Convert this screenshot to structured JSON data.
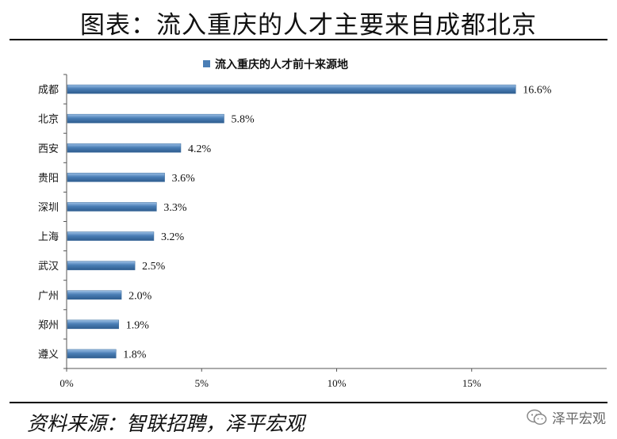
{
  "page": {
    "title": "图表：流入重庆的人才主要来自成都北京",
    "source": "资料来源：智联招聘，泽平宏观",
    "watermark": "泽平宏观",
    "watermark_icon": "wechat-icon"
  },
  "chart_data": {
    "type": "bar",
    "orientation": "horizontal",
    "title": "",
    "series": [
      {
        "name": "流入重庆的人才前十来源地",
        "color": "#4a7eb5",
        "values": [
          16.6,
          5.8,
          4.2,
          3.6,
          3.3,
          3.2,
          2.5,
          2.0,
          1.9,
          1.8
        ],
        "labels": [
          "16.6%",
          "5.8%",
          "4.2%",
          "3.6%",
          "3.3%",
          "3.2%",
          "2.5%",
          "2.0%",
          "1.9%",
          "1.8%"
        ]
      }
    ],
    "categories": [
      "成都",
      "北京",
      "西安",
      "贵阳",
      "深圳",
      "上海",
      "武汉",
      "广州",
      "郑州",
      "遵义"
    ],
    "xlim": [
      0,
      20
    ],
    "xticks": [
      0,
      5,
      10,
      15
    ],
    "xtick_labels": [
      "0%",
      "5%",
      "10%",
      "15%"
    ],
    "xlabel": "",
    "ylabel": "",
    "legend_position": "top",
    "grid": false
  }
}
